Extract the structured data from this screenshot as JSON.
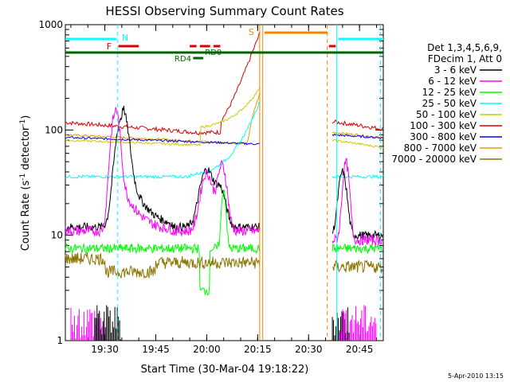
{
  "chart_data": {
    "type": "line",
    "title": "HESSI Observing Summary Count Rates",
    "xlabel": "Start Time (30-Mar-04 19:18:22)",
    "ylabel_main": "Count Rate (s",
    "ylabel_sup1": "-1",
    "ylabel_mid": " detector",
    "ylabel_sup2": "-1",
    "ylabel_end": ")",
    "y_scale": "log",
    "ylim": [
      1,
      1000
    ],
    "x_range_minutes": [
      "19:18:22",
      "20:52:00"
    ],
    "x_ticks": [
      "19:30",
      "19:45",
      "20:00",
      "20:15",
      "20:30",
      "20:45"
    ],
    "y_ticks": [
      "1",
      "10",
      "100",
      "1000"
    ],
    "legend_header": [
      "Det 1,3,4,5,6,9,",
      "FDecim 1, Att 0"
    ],
    "legend_position": "right",
    "series": [
      {
        "name": "3 - 6 keV",
        "color": "#000000"
      },
      {
        "name": "6 - 12 keV",
        "color": "#ff00ff"
      },
      {
        "name": "12 - 25 keV",
        "color": "#00ff00"
      },
      {
        "name": "25 - 50 keV",
        "color": "#00ffff"
      },
      {
        "name": "50 - 100 keV",
        "color": "#d4c800"
      },
      {
        "name": "100 - 300 keV",
        "color": "#dd0000"
      },
      {
        "name": "300 - 800 keV",
        "color": "#0000ff"
      },
      {
        "name": "800 - 7000 keV",
        "color": "#e39b00"
      },
      {
        "name": "7000 - 20000 keV",
        "color": "#8b7500"
      }
    ],
    "flags": [
      {
        "label": "N",
        "color": "#00ffff"
      },
      {
        "label": "F",
        "color": "#dd0000"
      },
      {
        "label": "RD0",
        "color": "#006400"
      },
      {
        "label": "RD4",
        "color": "#006400"
      },
      {
        "label": "S",
        "color": "#ff8000"
      }
    ],
    "series_trend": {
      "times": [
        19.305,
        19.55,
        19.5833,
        19.75,
        19.85,
        19.9,
        20.0,
        20.0833,
        20.1333,
        20.2,
        20.2667,
        20.6167,
        20.65,
        20.75,
        20.8667
      ],
      "comment_units": "hours decimal"
    }
  },
  "timestamp": "5-Apr-2010 13:15"
}
